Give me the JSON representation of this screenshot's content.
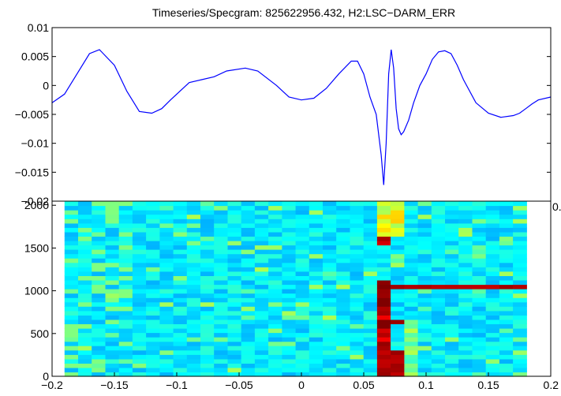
{
  "chart_data": [
    {
      "type": "line",
      "title": "Timeseries/Specgram: 825622956.432, H2:LSC−DARM_ERR",
      "xlim": [
        -0.2,
        0.2
      ],
      "ylim": [
        -0.02,
        0.01
      ],
      "yticks": [
        "0.01",
        "0.005",
        "0",
        "−0.005",
        "−0.01",
        "−0.015",
        "−0.02"
      ],
      "xticks_visible": [
        "0.2"
      ],
      "color": "#0000ff",
      "series": [
        {
          "x": [
            -0.2,
            -0.19,
            -0.18,
            -0.17,
            -0.162,
            -0.15,
            -0.14,
            -0.13,
            -0.12,
            -0.112,
            -0.105,
            -0.09,
            -0.08,
            -0.07,
            -0.06,
            -0.045,
            -0.035,
            -0.02,
            -0.01,
            0.0,
            0.01,
            0.02,
            0.03,
            0.04,
            0.045,
            0.05,
            0.055,
            0.06,
            0.064,
            0.066,
            0.068,
            0.07,
            0.072,
            0.074,
            0.076,
            0.078,
            0.08,
            0.082,
            0.086,
            0.09,
            0.095,
            0.1,
            0.105,
            0.11,
            0.115,
            0.12,
            0.125,
            0.13,
            0.14,
            0.15,
            0.16,
            0.17,
            0.175,
            0.18,
            0.185,
            0.19,
            0.2
          ],
          "y": [
            -0.003,
            -0.0015,
            0.002,
            0.0055,
            0.0062,
            0.0035,
            -0.001,
            -0.0045,
            -0.0048,
            -0.004,
            -0.0025,
            0.0005,
            0.001,
            0.0015,
            0.0025,
            0.003,
            0.0025,
            0.0,
            -0.002,
            -0.0025,
            -0.0022,
            -0.0005,
            0.002,
            0.0042,
            0.0042,
            0.002,
            -0.002,
            -0.005,
            -0.012,
            -0.0172,
            -0.01,
            0.002,
            0.0062,
            0.003,
            -0.004,
            -0.0075,
            -0.0085,
            -0.008,
            -0.006,
            -0.003,
            0.0,
            0.002,
            0.0045,
            0.0058,
            0.006,
            0.0055,
            0.0035,
            0.001,
            -0.003,
            -0.0048,
            -0.0055,
            -0.0052,
            -0.0048,
            -0.004,
            -0.0032,
            -0.0025,
            -0.002
          ]
        }
      ]
    },
    {
      "type": "heatmap",
      "xlim": [
        -0.2,
        0.2
      ],
      "ylim": [
        0,
        2048
      ],
      "xticks": [
        "−0.2",
        "−0.15",
        "−0.1",
        "−0.05",
        "0",
        "0.05",
        "0.1",
        "0.15",
        "0.2"
      ],
      "yticks": [
        "0",
        "500",
        "1000",
        "1500",
        "2000"
      ],
      "colormap": "jet",
      "columns_x_start": -0.19,
      "column_width": 0.0109,
      "row_count": 40,
      "column_count": 34,
      "band_features": [
        {
          "x_from": 0.06,
          "x_to": 0.081,
          "y_from": 0,
          "y_to": 300,
          "level": 1.0
        },
        {
          "x_from": 0.06,
          "x_to": 0.07,
          "y_from": 300,
          "y_to": 1150,
          "level": 0.95
        },
        {
          "x_from": 0.06,
          "x_to": 0.07,
          "y_from": 1550,
          "y_to": 1650,
          "level": 0.95
        },
        {
          "x_from": 0.06,
          "x_to": 0.081,
          "y_from": 1650,
          "y_to": 2048,
          "level": 0.6
        },
        {
          "x_from": 0.07,
          "x_to": 0.185,
          "y_from": 1020,
          "y_to": 1100,
          "level": 1.0
        },
        {
          "x_from": 0.07,
          "x_to": 0.078,
          "y_from": 600,
          "y_to": 680,
          "level": 1.0
        },
        {
          "x_from": 0.08,
          "x_to": 0.095,
          "y_from": 0,
          "y_to": 600,
          "level": 0.5
        }
      ]
    }
  ]
}
